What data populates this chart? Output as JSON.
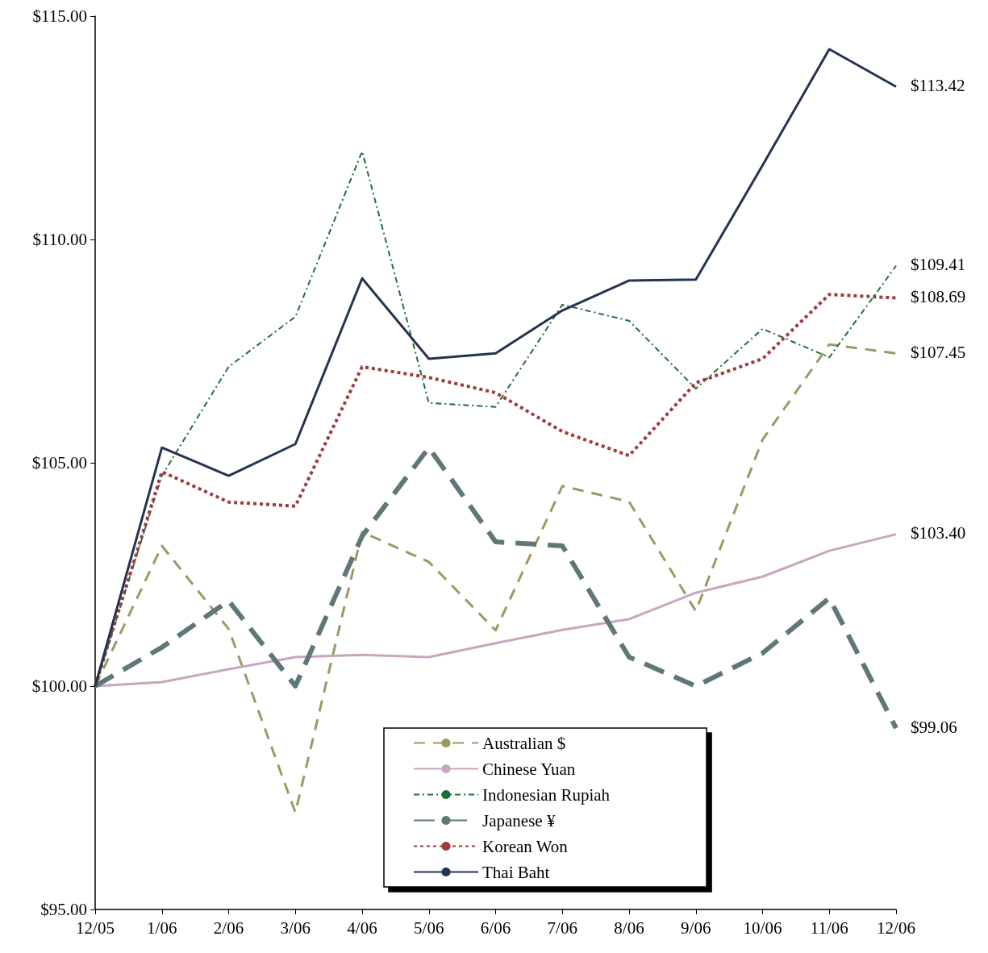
{
  "chart_data": {
    "type": "line",
    "categories": [
      "12/05",
      "1/06",
      "2/06",
      "3/06",
      "4/06",
      "5/06",
      "6/06",
      "7/06",
      "8/06",
      "9/06",
      "10/06",
      "11/06",
      "12/06"
    ],
    "ylim": [
      95,
      115
    ],
    "yticks": [
      {
        "value": 95,
        "label": "$95.00"
      },
      {
        "value": 100,
        "label": "$100.00"
      },
      {
        "value": 105,
        "label": "$105.00"
      },
      {
        "value": 110,
        "label": "$110.00"
      },
      {
        "value": 115,
        "label": "$115.00"
      }
    ],
    "grid": false,
    "legend": "bottom",
    "marker": "none",
    "series": [
      {
        "name": "Australian $",
        "color": "#9c9a62",
        "line_style": "dashed",
        "values": [
          100,
          103.14,
          101.28,
          97.17,
          103.45,
          102.78,
          101.25,
          104.48,
          104.13,
          101.68,
          105.52,
          107.65,
          107.45
        ]
      },
      {
        "name": "Chinese Yuan",
        "color": "#c8a6c0",
        "line_style": "solid",
        "values": [
          100,
          100.09,
          100.38,
          100.65,
          100.7,
          100.65,
          100.96,
          101.26,
          101.5,
          102.09,
          102.45,
          103.03,
          103.4
        ]
      },
      {
        "name": "Indonesian Rupiah",
        "color": "#1e6e3a",
        "line_style": "dashed",
        "values": [
          100,
          104.71,
          107.15,
          108.27,
          111.97,
          106.34,
          106.25,
          108.54,
          108.18,
          106.66,
          108.0,
          107.36,
          109.41
        ]
      },
      {
        "name": "Japanese ¥",
        "color": "#5f7778",
        "line_style": "dashed",
        "values": [
          100,
          100.87,
          101.91,
          100.0,
          103.36,
          105.34,
          103.23,
          103.14,
          100.65,
          100.0,
          100.74,
          101.97,
          99.06
        ]
      },
      {
        "name": "Korean Won",
        "color": "#a03a3a",
        "line_style": "dotted",
        "values": [
          100,
          104.8,
          104.12,
          104.03,
          107.15,
          106.91,
          106.57,
          105.7,
          105.16,
          106.79,
          107.33,
          108.77,
          108.69
        ]
      },
      {
        "name": "Thai Baht",
        "color": "#243352",
        "line_style": "solid",
        "values": [
          100,
          105.34,
          104.71,
          105.42,
          109.13,
          107.33,
          107.45,
          108.41,
          109.08,
          109.1,
          111.66,
          114.26,
          113.42
        ]
      }
    ],
    "annotations": [
      {
        "text": "$113.42",
        "x": "12/06",
        "y": 113.42
      },
      {
        "text": "$109.41",
        "x": "12/06",
        "y": 109.41
      },
      {
        "text": "$108.69",
        "x": "12/06",
        "y": 108.69
      },
      {
        "text": "$107.45",
        "x": "12/06",
        "y": 107.45
      },
      {
        "text": "$103.40",
        "x": "12/06",
        "y": 103.4
      },
      {
        "text": "$99.06",
        "x": "12/06",
        "y": 99.06
      }
    ]
  }
}
